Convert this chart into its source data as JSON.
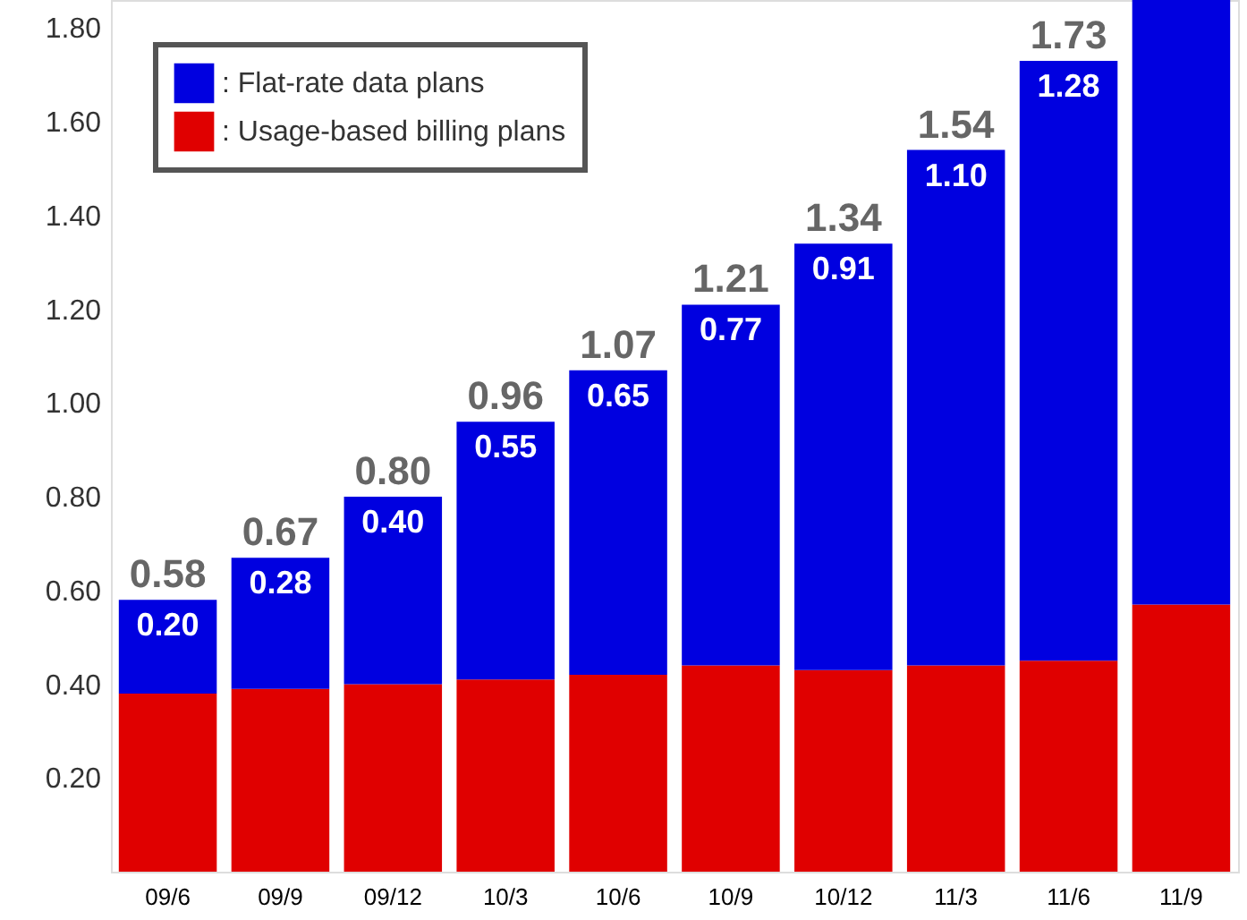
{
  "chart_data": {
    "type": "bar",
    "stacked": true,
    "categories": [
      "09/6",
      "09/9",
      "09/12",
      "10/3",
      "10/6",
      "10/9",
      "10/12",
      "11/3",
      "11/6",
      "11/9"
    ],
    "series": [
      {
        "name": ": Usage-based billing plans",
        "color": "#e00000",
        "values": [
          0.38,
          0.39,
          0.4,
          0.41,
          0.42,
          0.44,
          0.43,
          0.44,
          0.45,
          0.57
        ]
      },
      {
        "name": ": Flat-rate data  plans",
        "color": "#0000e0",
        "values": [
          0.2,
          0.28,
          0.4,
          0.55,
          0.65,
          0.77,
          0.91,
          1.1,
          1.28,
          1.29
        ],
        "value_labels": [
          "0.20",
          "0.28",
          "0.40",
          "0.55",
          "0.65",
          "0.77",
          "0.91",
          "1.10",
          "1.28",
          null
        ]
      }
    ],
    "totals": [
      "0.58",
      "0.67",
      "0.80",
      "0.96",
      "1.07",
      "1.21",
      "1.34",
      "1.54",
      "1.73",
      null
    ],
    "ylim": [
      0,
      1.86
    ],
    "yticks": [
      {
        "value": 0.2,
        "label": "0.20"
      },
      {
        "value": 0.4,
        "label": "0.40"
      },
      {
        "value": 0.6,
        "label": "0.60"
      },
      {
        "value": 0.8,
        "label": "0.80"
      },
      {
        "value": 1.0,
        "label": "1.00"
      },
      {
        "value": 1.2,
        "label": "1.20"
      },
      {
        "value": 1.4,
        "label": "1.40"
      },
      {
        "value": 1.6,
        "label": "1.60"
      },
      {
        "value": 1.8,
        "label": "1.80"
      }
    ],
    "legend": "top left",
    "grid": false
  }
}
